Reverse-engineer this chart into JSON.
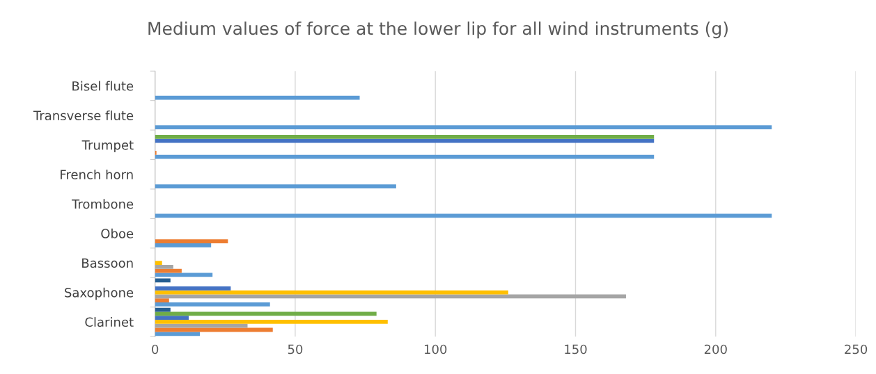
{
  "chart_data": {
    "type": "bar",
    "orientation": "horizontal",
    "title": "Medium values of force at the lower lip for all wind instruments (g)",
    "categories": [
      "Bisel flute",
      "Transverse flute",
      "Trumpet",
      "French horn",
      "Trombone",
      "Oboe",
      "Bassoon",
      "Saxophone",
      "Clarinet"
    ],
    "series": [
      {
        "color": "#5b9bd5",
        "values": [
          73,
          220,
          178,
          86,
          220,
          20,
          20.5,
          41,
          16
        ]
      },
      {
        "color": "#ed7d31",
        "values": [
          null,
          null,
          0.5,
          null,
          null,
          26,
          9.5,
          5,
          42
        ]
      },
      {
        "color": "#a5a5a5",
        "values": [
          null,
          null,
          null,
          null,
          null,
          null,
          6.5,
          168,
          33
        ]
      },
      {
        "color": "#ffc000",
        "values": [
          null,
          null,
          null,
          null,
          null,
          null,
          2.5,
          126,
          83
        ]
      },
      {
        "color": "#4472c4",
        "values": [
          null,
          null,
          178,
          null,
          null,
          null,
          null,
          27,
          12
        ]
      },
      {
        "color": "#70ad47",
        "values": [
          null,
          null,
          178,
          null,
          null,
          null,
          null,
          null,
          79
        ]
      },
      {
        "color": "#255e91",
        "values": [
          null,
          null,
          null,
          null,
          null,
          null,
          null,
          5.5,
          5.5
        ]
      }
    ],
    "xlim": [
      0,
      250
    ],
    "xticks": [
      0,
      50,
      100,
      150,
      200,
      250
    ],
    "grid": "x",
    "legend": false
  }
}
